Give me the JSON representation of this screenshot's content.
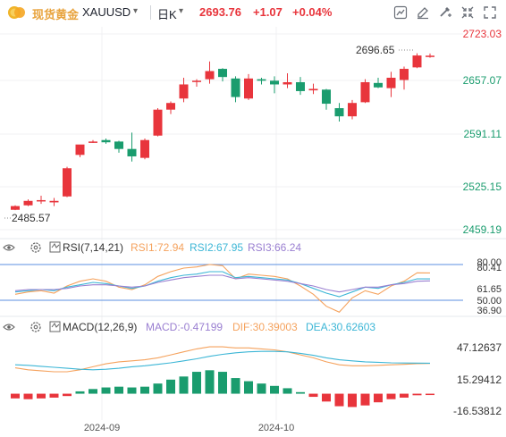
{
  "header": {
    "instrument_name": "现货黄金",
    "symbol": "XAUUSD",
    "period": "日K",
    "last_price": "2693.76",
    "change": "+1.07",
    "change_pct": "+0.04%",
    "toolbar_icons": [
      "chart-settings-icon",
      "drawing-tool-icon",
      "indicator-tool-icon",
      "collapse-icon",
      "fullscreen-icon"
    ]
  },
  "main_chart": {
    "price_labels": [
      "2723.03",
      "2657.07",
      "2591.11",
      "2525.15",
      "2459.19"
    ],
    "high_marker": "2696.65",
    "low_marker": "2485.57"
  },
  "rsi": {
    "name": "RSI(7,14,21)",
    "rsi1": "RSI1:72.94",
    "rsi2": "RSI2:67.95",
    "rsi3": "RSI3:66.24",
    "axis_labels": [
      "80.41",
      "80.00",
      "61.65",
      "50.00",
      "36.90"
    ]
  },
  "macd": {
    "name": "MACD(12,26,9)",
    "macd": "MACD:-0.47199",
    "dif": "DIF:30.39003",
    "dea": "DEA:30.62603",
    "axis_labels": [
      "47.12637",
      "15.29412",
      "-16.53812"
    ]
  },
  "x_axis": {
    "labels": [
      "2024-09",
      "2024-10"
    ]
  },
  "colors": {
    "up": "#e8353c",
    "down": "#1a9c6e",
    "rsi1": "#f5a25d",
    "rsi2": "#3cb6d6",
    "rsi3": "#9a7fd1",
    "dif": "#f5a25d",
    "dea": "#3cb6d6",
    "reference_line": "#5b8fe0"
  },
  "chart_data": [
    {
      "type": "candlestick",
      "title": "XAUUSD 日K",
      "x_range": [
        "2024-08-20",
        "2024-10-24"
      ],
      "ylim": [
        2459.19,
        2723.03
      ],
      "grid": true,
      "candles": [
        {
          "o": 2486,
          "h": 2492,
          "l": 2485.57,
          "c": 2491
        },
        {
          "o": 2492,
          "h": 2500,
          "l": 2491,
          "c": 2498
        },
        {
          "o": 2499,
          "h": 2505,
          "l": 2494,
          "c": 2499
        },
        {
          "o": 2496,
          "h": 2502,
          "l": 2491,
          "c": 2498
        },
        {
          "o": 2504,
          "h": 2544,
          "l": 2503,
          "c": 2542
        },
        {
          "o": 2560,
          "h": 2572,
          "l": 2557,
          "c": 2574
        },
        {
          "o": 2578,
          "h": 2580,
          "l": 2576,
          "c": 2578
        },
        {
          "o": 2580,
          "h": 2582,
          "l": 2575,
          "c": 2577
        },
        {
          "o": 2578,
          "h": 2579,
          "l": 2563,
          "c": 2568
        },
        {
          "o": 2568,
          "h": 2590,
          "l": 2551,
          "c": 2558
        },
        {
          "o": 2556,
          "h": 2582,
          "l": 2554,
          "c": 2580
        },
        {
          "o": 2586,
          "h": 2623,
          "l": 2585,
          "c": 2621
        },
        {
          "o": 2621,
          "h": 2632,
          "l": 2615,
          "c": 2630
        },
        {
          "o": 2636,
          "h": 2664,
          "l": 2631,
          "c": 2655
        },
        {
          "o": 2660,
          "h": 2662,
          "l": 2652,
          "c": 2660
        },
        {
          "o": 2662,
          "h": 2686,
          "l": 2656,
          "c": 2673
        },
        {
          "o": 2676,
          "h": 2677,
          "l": 2659,
          "c": 2665
        },
        {
          "o": 2663,
          "h": 2666,
          "l": 2631,
          "c": 2638
        },
        {
          "o": 2636,
          "h": 2669,
          "l": 2634,
          "c": 2663
        },
        {
          "o": 2662,
          "h": 2664,
          "l": 2655,
          "c": 2660
        },
        {
          "o": 2660,
          "h": 2666,
          "l": 2643,
          "c": 2655
        },
        {
          "o": 2655,
          "h": 2670,
          "l": 2650,
          "c": 2658
        },
        {
          "o": 2658,
          "h": 2665,
          "l": 2641,
          "c": 2646
        },
        {
          "o": 2647,
          "h": 2656,
          "l": 2642,
          "c": 2649
        },
        {
          "o": 2648,
          "h": 2649,
          "l": 2621,
          "c": 2629
        },
        {
          "o": 2623,
          "h": 2630,
          "l": 2605,
          "c": 2612
        },
        {
          "o": 2612,
          "h": 2634,
          "l": 2608,
          "c": 2630
        },
        {
          "o": 2631,
          "h": 2662,
          "l": 2630,
          "c": 2658
        },
        {
          "o": 2657,
          "h": 2664,
          "l": 2650,
          "c": 2651
        },
        {
          "o": 2650,
          "h": 2672,
          "l": 2638,
          "c": 2664
        },
        {
          "o": 2661,
          "h": 2679,
          "l": 2648,
          "c": 2676
        },
        {
          "o": 2678,
          "h": 2697,
          "l": 2677,
          "c": 2694
        },
        {
          "o": 2693,
          "h": 2696.65,
          "l": 2691,
          "c": 2693.76
        }
      ]
    },
    {
      "type": "line",
      "title": "RSI(7,14,21)",
      "ylim": [
        36.9,
        80.41
      ],
      "reference_lines": [
        80,
        50
      ],
      "series": [
        {
          "name": "RSI1",
          "values": [
            55,
            57,
            58,
            56,
            62,
            66,
            68,
            66,
            61,
            59,
            63,
            70,
            74,
            77,
            78,
            80,
            79,
            68,
            72,
            71,
            70,
            68,
            62,
            55,
            45,
            40,
            52,
            58,
            55,
            62,
            66,
            73,
            72.94
          ]
        },
        {
          "name": "RSI2",
          "values": [
            57,
            58,
            59,
            58,
            61,
            63,
            65,
            64,
            62,
            60,
            62,
            66,
            69,
            71,
            72,
            74,
            74,
            69,
            70,
            69,
            68,
            67,
            64,
            60,
            56,
            53,
            57,
            61,
            60,
            63,
            65,
            68,
            67.95
          ]
        },
        {
          "name": "RSI3",
          "values": [
            58,
            59,
            59,
            59,
            60,
            62,
            63,
            63,
            62,
            61,
            62,
            65,
            67,
            69,
            70,
            71,
            71,
            68,
            69,
            68,
            67,
            66,
            64,
            62,
            59,
            57,
            59,
            61,
            61,
            63,
            64,
            66,
            66.24
          ]
        }
      ]
    },
    {
      "type": "bar",
      "title": "MACD(12,26,9)",
      "ylim": [
        -16.53812,
        47.12637
      ],
      "bar_series": {
        "name": "MACD",
        "values": [
          -3,
          -3.5,
          -3,
          -2.5,
          -1.5,
          1.5,
          3,
          4,
          4.5,
          4,
          4.5,
          6.5,
          9,
          11,
          14,
          15,
          14,
          10,
          8,
          6.5,
          5,
          3.5,
          1,
          -2,
          -5,
          -8,
          -8.5,
          -7.5,
          -5.5,
          -3.5,
          -2.5,
          -1,
          -0.47199
        ]
      },
      "series": [
        {
          "name": "DIF",
          "values": [
            26,
            24,
            23,
            22,
            22,
            24,
            27,
            30,
            32,
            33,
            34,
            36,
            39,
            42,
            45,
            47,
            47,
            46,
            46,
            45,
            44,
            42,
            39,
            36,
            32,
            29,
            28,
            28,
            28.5,
            29,
            29.5,
            30.2,
            30.39
          ]
        },
        {
          "name": "DEA",
          "values": [
            29,
            28.5,
            27.5,
            26.5,
            25.5,
            24.5,
            24,
            24.5,
            25.5,
            27,
            28,
            29.5,
            31,
            33,
            35,
            37.5,
            39.5,
            41,
            42,
            42.5,
            42.5,
            42,
            40.5,
            38.5,
            36,
            34,
            33,
            32,
            31.5,
            31,
            30.8,
            30.7,
            30.63
          ]
        }
      ]
    }
  ]
}
